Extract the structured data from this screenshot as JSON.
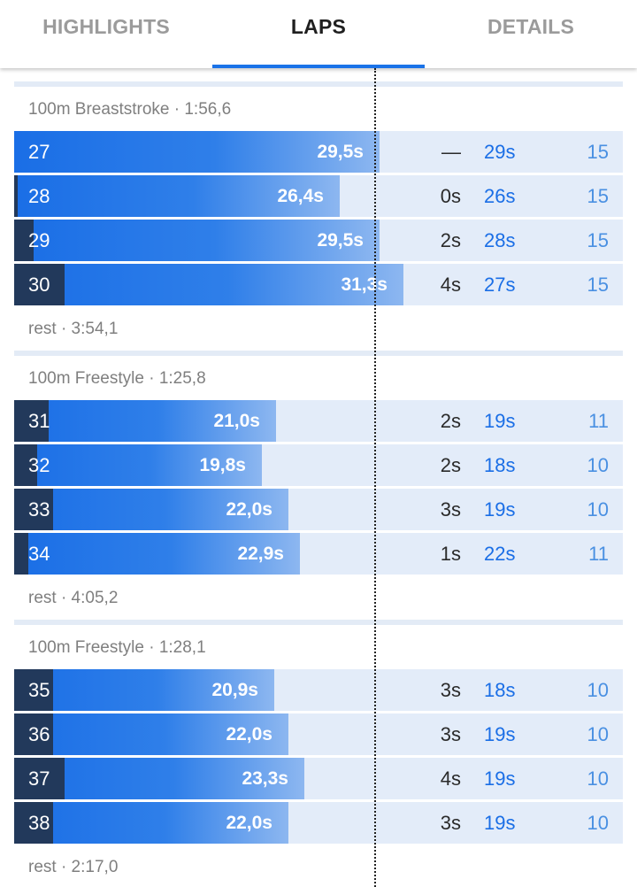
{
  "tabs": [
    {
      "label": "HIGHLIGHTS",
      "active": false
    },
    {
      "label": "LAPS",
      "active": true
    },
    {
      "label": "DETAILS",
      "active": false
    }
  ],
  "colors": {
    "accent": "#1a73e8",
    "bar_start": "#1a6ee6",
    "bar_end": "#8db7f0",
    "dark_segment": "#22395b",
    "row_background": "#e3ecf9",
    "separator": "#e3ebf6"
  },
  "sets": [
    {
      "title": "100m Breaststroke · 1:56,6",
      "laps": [
        {
          "num": "27",
          "time": "29,5s",
          "diff": "—",
          "split": "29s",
          "strokes": "15",
          "bar_pct": 60.0,
          "dark_pct": 0.0
        },
        {
          "num": "28",
          "time": "26,4s",
          "diff": "0s",
          "split": "26s",
          "strokes": "15",
          "bar_pct": 53.5,
          "dark_pct": 0.6
        },
        {
          "num": "29",
          "time": "29,5s",
          "diff": "2s",
          "split": "28s",
          "strokes": "15",
          "bar_pct": 60.0,
          "dark_pct": 3.2
        },
        {
          "num": "30",
          "time": "31,3s",
          "diff": "4s",
          "split": "27s",
          "strokes": "15",
          "bar_pct": 64.0,
          "dark_pct": 8.3
        }
      ],
      "rest": "rest · 3:54,1"
    },
    {
      "title": "100m Freestyle · 1:25,8",
      "laps": [
        {
          "num": "31",
          "time": "21,0s",
          "diff": "2s",
          "split": "19s",
          "strokes": "11",
          "bar_pct": 43.0,
          "dark_pct": 5.7
        },
        {
          "num": "32",
          "time": "19,8s",
          "diff": "2s",
          "split": "18s",
          "strokes": "10",
          "bar_pct": 40.7,
          "dark_pct": 3.8
        },
        {
          "num": "33",
          "time": "22,0s",
          "diff": "3s",
          "split": "19s",
          "strokes": "10",
          "bar_pct": 45.1,
          "dark_pct": 6.4
        },
        {
          "num": "34",
          "time": "22,9s",
          "diff": "1s",
          "split": "22s",
          "strokes": "11",
          "bar_pct": 47.0,
          "dark_pct": 2.3
        }
      ],
      "rest": "rest · 4:05,2"
    },
    {
      "title": "100m Freestyle · 1:28,1",
      "laps": [
        {
          "num": "35",
          "time": "20,9s",
          "diff": "3s",
          "split": "18s",
          "strokes": "10",
          "bar_pct": 42.7,
          "dark_pct": 6.4
        },
        {
          "num": "36",
          "time": "22,0s",
          "diff": "3s",
          "split": "19s",
          "strokes": "10",
          "bar_pct": 45.1,
          "dark_pct": 6.4
        },
        {
          "num": "37",
          "time": "23,3s",
          "diff": "4s",
          "split": "19s",
          "strokes": "10",
          "bar_pct": 47.7,
          "dark_pct": 8.3
        },
        {
          "num": "38",
          "time": "22,0s",
          "diff": "3s",
          "split": "19s",
          "strokes": "10",
          "bar_pct": 45.1,
          "dark_pct": 6.4
        }
      ],
      "rest": "rest · 2:17,0"
    }
  ]
}
